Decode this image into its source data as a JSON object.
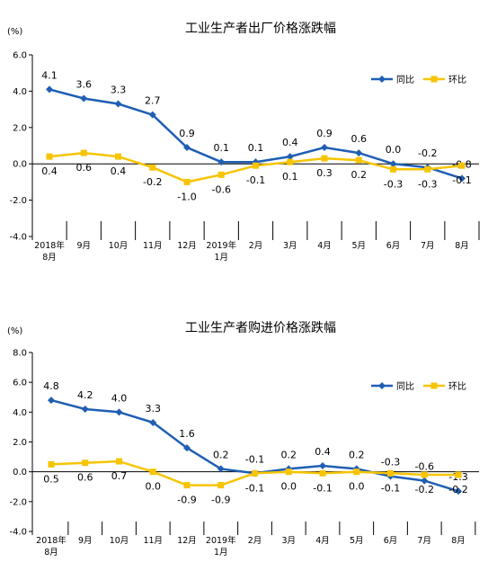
{
  "colors": {
    "yoy": "#1f5fb4",
    "mom": "#f6c400",
    "axis": "#000000"
  },
  "chart_data": [
    {
      "type": "line",
      "title": "工业生产者出厂价格涨跌幅",
      "ylabel": "(%)",
      "ylim": [
        -4.0,
        6.0
      ],
      "yticks": [
        "6.0",
        "4.0",
        "2.0",
        "0.0",
        "-2.0",
        "-4.0"
      ],
      "categories": [
        [
          "2018年",
          "8月"
        ],
        [
          "9月"
        ],
        [
          "10月"
        ],
        [
          "11月"
        ],
        [
          "12月"
        ],
        [
          "2019年",
          "1月"
        ],
        [
          "2月"
        ],
        [
          "3月"
        ],
        [
          "4月"
        ],
        [
          "5月"
        ],
        [
          "6月"
        ],
        [
          "7月"
        ],
        [
          "8月"
        ]
      ],
      "legend_position": "top-right",
      "series": [
        {
          "name": "同比",
          "color": "#1f5fb4",
          "marker": "diamond",
          "values": [
            4.1,
            3.6,
            3.3,
            2.7,
            0.9,
            0.1,
            0.1,
            0.4,
            0.9,
            0.6,
            0.0,
            -0.2,
            -0.8
          ],
          "labels": [
            "4.1",
            "3.6",
            "3.3",
            "2.7",
            "0.9",
            "0.1",
            "0.1",
            "0.4",
            "0.9",
            "0.6",
            "0.0",
            "-0.2",
            "-0.8"
          ]
        },
        {
          "name": "环比",
          "color": "#f6c400",
          "marker": "square",
          "values": [
            0.4,
            0.6,
            0.4,
            -0.2,
            -1.0,
            -0.6,
            -0.1,
            0.1,
            0.3,
            0.2,
            -0.3,
            -0.3,
            -0.1
          ],
          "labels": [
            "0.4",
            "0.6",
            "0.4",
            "-0.2",
            "-1.0",
            "-0.6",
            "-0.1",
            "0.1",
            "0.3",
            "0.2",
            "-0.3",
            "-0.3",
            "-0.1"
          ]
        }
      ]
    },
    {
      "type": "line",
      "title": "工业生产者购进价格涨跌幅",
      "ylabel": "(%)",
      "ylim": [
        -4.0,
        8.0
      ],
      "yticks": [
        "8.0",
        "6.0",
        "4.0",
        "2.0",
        "0.0",
        "-2.0",
        "-4.0"
      ],
      "categories": [
        [
          "2018年",
          "8月"
        ],
        [
          "9月"
        ],
        [
          "10月"
        ],
        [
          "11月"
        ],
        [
          "12月"
        ],
        [
          "2019年",
          "1月"
        ],
        [
          "2月"
        ],
        [
          "3月"
        ],
        [
          "4月"
        ],
        [
          "5月"
        ],
        [
          "6月"
        ],
        [
          "7月"
        ],
        [
          "8月"
        ]
      ],
      "legend_position": "top-right",
      "series": [
        {
          "name": "同比",
          "color": "#1f5fb4",
          "marker": "diamond",
          "values": [
            4.8,
            4.2,
            4.0,
            3.3,
            1.6,
            0.2,
            -0.1,
            0.2,
            0.4,
            0.2,
            -0.3,
            -0.6,
            -1.3
          ],
          "labels": [
            "4.8",
            "4.2",
            "4.0",
            "3.3",
            "1.6",
            "0.2",
            "-0.1",
            "0.2",
            "0.4",
            "0.2",
            "-0.3",
            "-0.6",
            "-1.3"
          ]
        },
        {
          "name": "环比",
          "color": "#f6c400",
          "marker": "square",
          "values": [
            0.5,
            0.6,
            0.7,
            0.0,
            -0.9,
            -0.9,
            -0.1,
            0.0,
            -0.1,
            0.0,
            -0.1,
            -0.2,
            -0.2
          ],
          "labels": [
            "0.5",
            "0.6",
            "0.7",
            "0.0",
            "-0.9",
            "-0.9",
            "-0.1",
            "0.0",
            "-0.1",
            "0.0",
            "-0.1",
            "-0.2",
            "-0.2"
          ]
        }
      ]
    }
  ]
}
